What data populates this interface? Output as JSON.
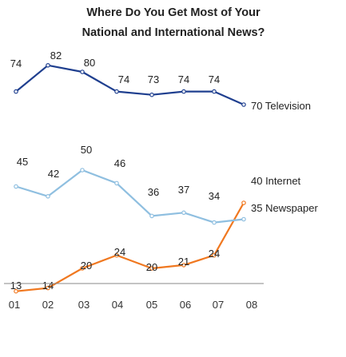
{
  "chart_data": {
    "type": "line",
    "title_lines": [
      "Where Do You Get Most of Your",
      "National and International News?"
    ],
    "x": [
      "01",
      "02",
      "03",
      "04",
      "05",
      "06",
      "07",
      "08"
    ],
    "series": [
      {
        "name": "Television",
        "end_label": "70 Television",
        "values": [
          74,
          82,
          80,
          74,
          73,
          74,
          74,
          70
        ],
        "value_labels": [
          "74",
          "82",
          "80",
          "74",
          "73",
          "74",
          "74"
        ],
        "color": "#1f3f8f"
      },
      {
        "name": "Internet",
        "end_label": "40 Internet",
        "values": [
          13,
          14,
          20,
          24,
          20,
          21,
          24,
          40
        ],
        "value_labels": [
          "13",
          "14",
          "20",
          "24",
          "20",
          "21",
          "24"
        ],
        "color": "#f07820"
      },
      {
        "name": "Newspaper",
        "end_label": "35 Newspaper",
        "values": [
          45,
          42,
          50,
          46,
          36,
          37,
          34,
          35
        ],
        "value_labels": [
          "45",
          "42",
          "50",
          "46",
          "36",
          "37",
          "34"
        ],
        "color": "#8fbfe0"
      }
    ],
    "xlabel": "",
    "ylabel": "",
    "grid": false
  }
}
